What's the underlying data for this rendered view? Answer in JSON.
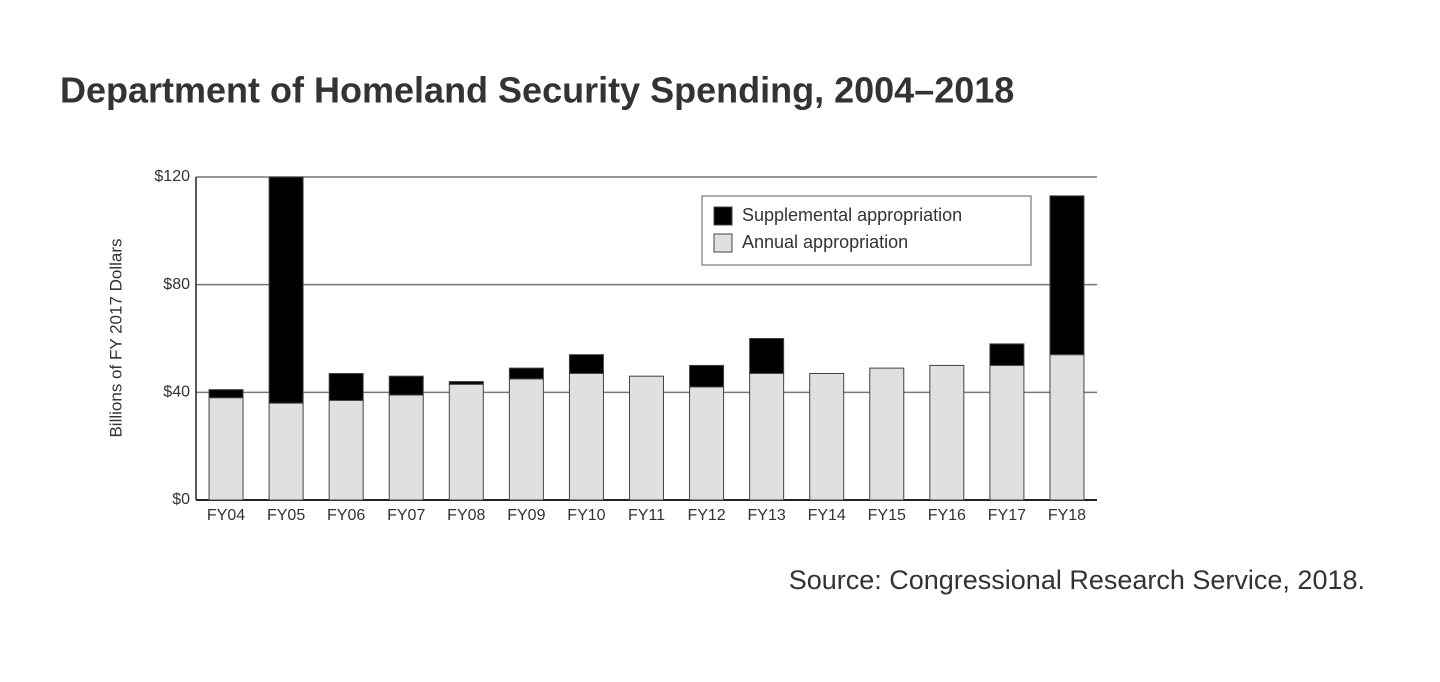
{
  "chart_data": {
    "type": "stacked-bar",
    "title": "Department of Homeland Security Spending, 2004–2018",
    "y_label": "Billions of FY 2017 Dollars",
    "source": "Source: Congressional Research Service, 2018.",
    "categories": [
      "FY04",
      "FY05",
      "FY06",
      "FY07",
      "FY08",
      "FY09",
      "FY10",
      "FY11",
      "FY12",
      "FY13",
      "FY14",
      "FY15",
      "FY16",
      "FY17",
      "FY18"
    ],
    "series": [
      {
        "name": "Annual appropriation",
        "color": "#e0e0e0",
        "values": [
          38,
          36,
          37,
          39,
          43,
          45,
          47,
          46,
          42,
          47,
          47,
          49,
          50,
          50,
          54
        ]
      },
      {
        "name": "Supplemental appropriation",
        "color": "#000000",
        "values": [
          3,
          84,
          10,
          7,
          1,
          4,
          7,
          0,
          8,
          13,
          0,
          0,
          0,
          8,
          59
        ]
      }
    ],
    "ylim": [
      0,
      120
    ],
    "yticks": [
      {
        "value": 0,
        "label": "$0"
      },
      {
        "value": 40,
        "label": "$40"
      },
      {
        "value": 80,
        "label": "$80"
      },
      {
        "value": 120,
        "label": "$120"
      }
    ],
    "grid": true,
    "legend": "upper right"
  }
}
